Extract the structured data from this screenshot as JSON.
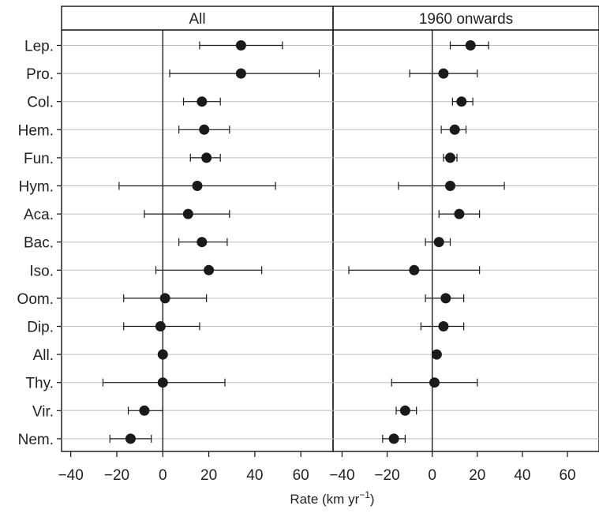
{
  "chart_data": {
    "type": "scatter",
    "chart_style": "dot-and-whisker",
    "categories": [
      "Lep.",
      "Pro.",
      "Col.",
      "Hem.",
      "Fun.",
      "Hym.",
      "Aca.",
      "Bac.",
      "Iso.",
      "Oom.",
      "Dip.",
      "All.",
      "Thy.",
      "Vir.",
      "Nem."
    ],
    "xlabel": "Rate (km yr",
    "xlabel_superscript": "−1",
    "xlabel_suffix": ")",
    "xlim": [
      -44,
      74
    ],
    "xticks": [
      -40,
      -20,
      0,
      20,
      40,
      60
    ],
    "xtick_labels": [
      "−40",
      "−20",
      "0",
      "20",
      "40",
      "60"
    ],
    "grid": "horizontal",
    "reference_line_x": 0,
    "colors": {
      "point": "#1a1a1a",
      "whisker": "#1a1a1a",
      "grid": "#bdbdbd",
      "frame": "#111111",
      "text": "#222222"
    },
    "panels": [
      {
        "title": "All",
        "estimate": [
          34,
          34,
          17,
          18,
          19,
          15,
          11,
          17,
          20,
          1,
          -1,
          0,
          0,
          -8,
          -14
        ],
        "lower": [
          16,
          3,
          9,
          7,
          12,
          -19,
          -8,
          7,
          -3,
          -17,
          -17,
          null,
          -26,
          -15,
          -23
        ],
        "upper": [
          52,
          68,
          25,
          29,
          25,
          49,
          29,
          28,
          43,
          19,
          16,
          null,
          27,
          0,
          -5
        ]
      },
      {
        "title": "1960 onwards",
        "estimate": [
          17,
          5,
          13,
          10,
          8,
          8,
          12,
          3,
          -8,
          6,
          5,
          2,
          1,
          -12,
          -17
        ],
        "lower": [
          8,
          -10,
          9,
          4,
          5,
          -15,
          3,
          -3,
          -37,
          -3,
          -5,
          null,
          -18,
          -16,
          -22
        ],
        "upper": [
          25,
          20,
          18,
          15,
          11,
          32,
          21,
          8,
          21,
          14,
          14,
          null,
          20,
          -7,
          -12
        ]
      }
    ]
  }
}
